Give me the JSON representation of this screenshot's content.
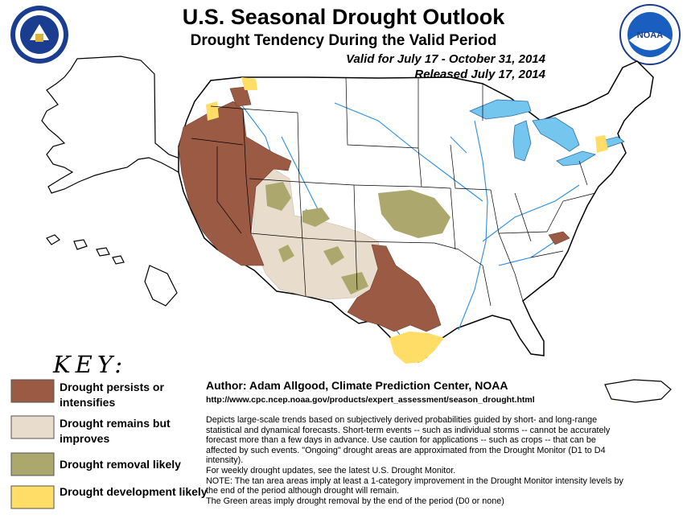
{
  "header": {
    "title": "U.S. Seasonal Drought Outlook",
    "subtitle": "Drought Tendency During the Valid Period",
    "valid": "Valid for July 17 - October 31, 2014",
    "released": "Released July 17, 2014"
  },
  "colors": {
    "persists": "#9b5a44",
    "improves": "#e8dccd",
    "removal": "#aca86d",
    "development": "#ffdd66",
    "water": "#74c6ee",
    "rivers": "#2a8fe0",
    "border": "#000000"
  },
  "legend": {
    "heading": "KEY:",
    "items": [
      {
        "label": "Drought persists or intensifies",
        "color": "#9b5a44"
      },
      {
        "label": "Drought remains but improves",
        "color": "#e8dccd"
      },
      {
        "label": "Drought removal likely",
        "color": "#aca86d"
      },
      {
        "label": "Drought development likely",
        "color": "#ffdd66"
      }
    ]
  },
  "author": "Author: Adam Allgood, Climate Prediction Center, NOAA",
  "url": "http://www.cpc.ncep.noaa.gov/products/expert_assessment/season_drought.html",
  "description": [
    "Depicts large-scale trends based on subjectively derived probabilities guided by short- and long-range statistical and dynamical forecasts. Short-term events -- such as individual storms -- cannot be accurately forecast more than a few days in advance. Use caution for applications -- such as crops -- that can be affected by such events. \"Ongoing\" drought areas are approximated from the Drought Monitor (D1 to D4 intensity).",
    "For weekly drought updates, see the latest U.S. Drought Monitor.",
    "NOTE: The tan area areas imply at least a 1-category improvement in the Drought Monitor intensity levels by the end of the period although drought will remain.",
    "The Green areas imply drought removal by the end of the period (D0 or none)"
  ],
  "logos": {
    "left": {
      "name": "department-of-commerce-seal",
      "text": "DEPARTMENT OF COMMERCE"
    },
    "right": {
      "name": "noaa-logo",
      "text": "NOAA"
    }
  }
}
